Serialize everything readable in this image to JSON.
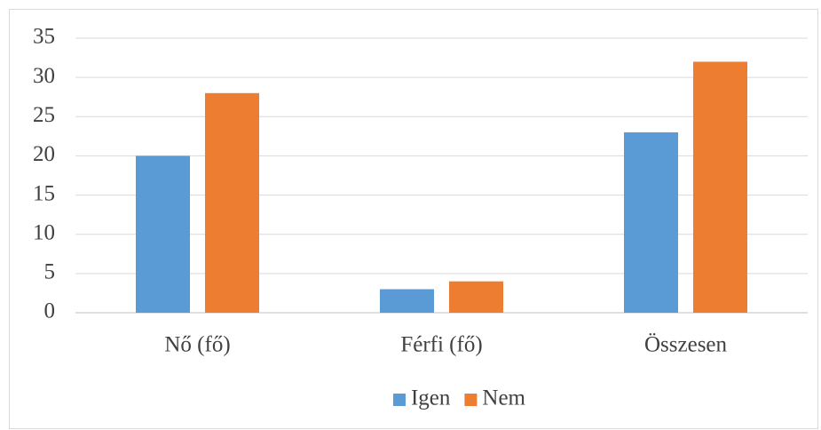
{
  "chart_data": {
    "type": "bar",
    "categories": [
      "Nő (fő)",
      "Férfi (fő)",
      "Összesen"
    ],
    "series": [
      {
        "name": "Igen",
        "color": "#5b9bd5",
        "values": [
          20,
          3,
          23
        ]
      },
      {
        "name": "Nem",
        "color": "#ed7d31",
        "values": [
          28,
          4,
          32
        ]
      }
    ],
    "ylim": [
      0,
      35
    ],
    "yticks": [
      0,
      5,
      10,
      15,
      20,
      25,
      30,
      35
    ],
    "grid": true,
    "legend": "bottom"
  }
}
